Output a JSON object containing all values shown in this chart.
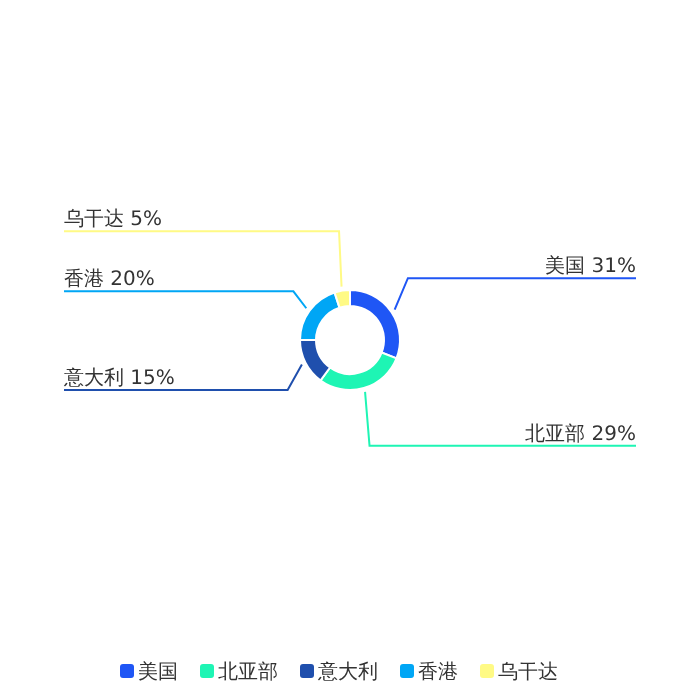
{
  "chart_data": {
    "type": "donut",
    "categories": [
      "美国",
      "北亚部",
      "意大利",
      "香港",
      "乌干达"
    ],
    "values": [
      31,
      29,
      15,
      20,
      5
    ],
    "colors": [
      "#1f56f5",
      "#1ef5b4",
      "#1f4fad",
      "#00a6f5",
      "#fffa85"
    ],
    "value_labels": [
      "31%",
      "29%",
      "15%",
      "20%",
      "5%"
    ],
    "legend": "bottom"
  }
}
